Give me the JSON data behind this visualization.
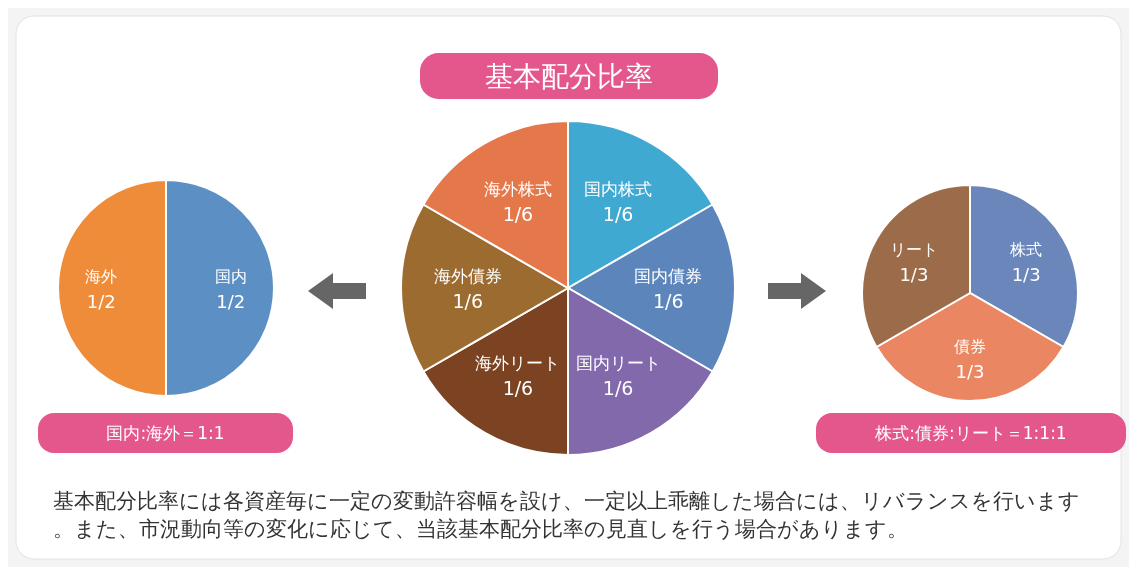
{
  "chart_data": [
    {
      "type": "pie",
      "title": "国内:海外＝1:1",
      "categories": [
        "国内",
        "海外"
      ],
      "values": [
        0.5,
        0.5
      ],
      "value_labels": [
        "1/2",
        "1/2"
      ],
      "colors": [
        "#5c8fc4",
        "#ee8c3a"
      ]
    },
    {
      "type": "pie",
      "title": "基本配分比率",
      "categories": [
        "国内株式",
        "国内債券",
        "国内リート",
        "海外リート",
        "海外債券",
        "海外株式"
      ],
      "values": [
        0.1667,
        0.1667,
        0.1667,
        0.1667,
        0.1667,
        0.1667
      ],
      "value_labels": [
        "1/6",
        "1/6",
        "1/6",
        "1/6",
        "1/6",
        "1/6"
      ],
      "colors": [
        "#3fa9d2",
        "#5b85bb",
        "#8169ab",
        "#7b4322",
        "#9c6b30",
        "#e5784a"
      ],
      "annotations": [
        "基本配分比率には各資産毎に一定の変動許容幅を設け、一定以上乖離した場合には、リバランスを行います。また、市況動向等の変化に応じて、当該基本配分比率の見直しを行う場合があります。"
      ]
    },
    {
      "type": "pie",
      "title": "株式:債券:リート＝1:1:1",
      "categories": [
        "株式",
        "債券",
        "リート"
      ],
      "values": [
        0.3333,
        0.3333,
        0.3333
      ],
      "value_labels": [
        "1/3",
        "1/3",
        "1/3"
      ],
      "colors": [
        "#6b86bb",
        "#eb8662",
        "#9c6c4a"
      ]
    }
  ]
}
